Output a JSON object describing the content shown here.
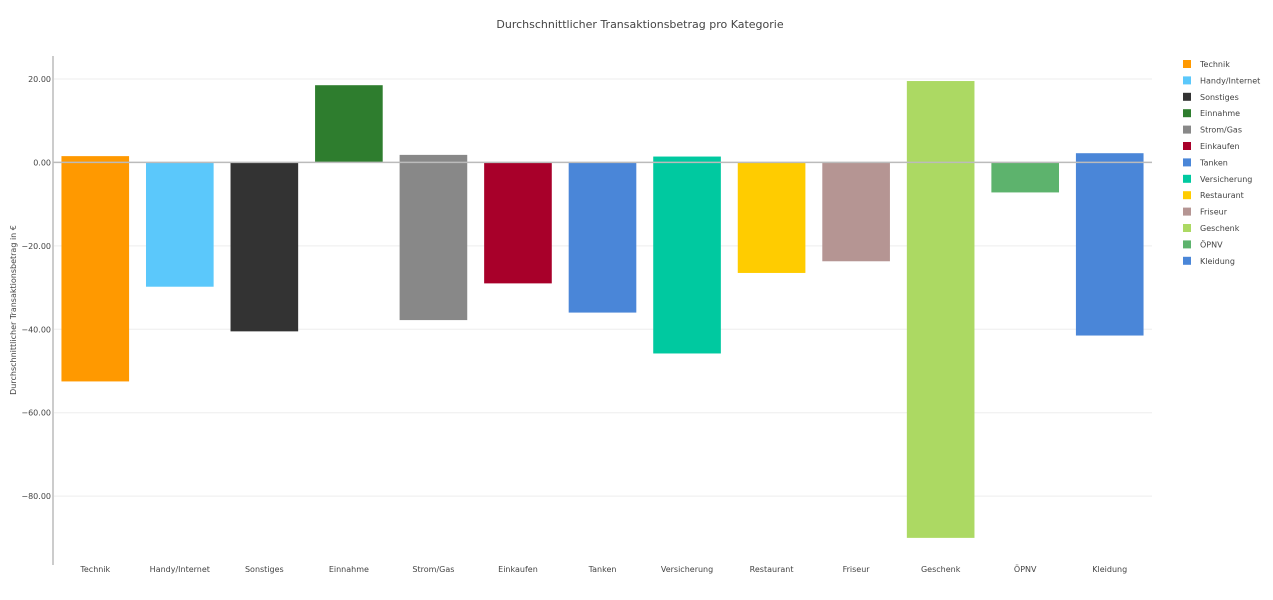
{
  "chart_data": {
    "type": "bar",
    "title": "Durchschnittlicher Transaktionsbetrag pro Kategorie",
    "xlabel": "",
    "ylabel": "Durchschnittlicher Transaktionsbetrag in €",
    "ylim": [
      -96.5,
      25.5
    ],
    "yticks": [
      20,
      0,
      -20,
      -40,
      -60,
      -80
    ],
    "ytick_labels": [
      "20.00",
      "0.00",
      "−20.00",
      "−40.00",
      "−60.00",
      "−80.00"
    ],
    "grid": true,
    "legend_position": "right",
    "categories": [
      "Technik",
      "Handy/Internet",
      "Sonstiges",
      "Einnahme",
      "Strom/Gas",
      "Einkaufen",
      "Tanken",
      "Versicherung",
      "Restaurant",
      "Friseur",
      "Geschenk",
      "ÖPNV",
      "Kleidung"
    ],
    "top_values": [
      1.5,
      0,
      0,
      18.5,
      1.8,
      0,
      0,
      1.4,
      0,
      0,
      19.5,
      0,
      2.2
    ],
    "bottom_values": [
      -52.5,
      -29.8,
      -40.5,
      0,
      -37.8,
      -29.0,
      -36.0,
      -45.8,
      -26.5,
      -23.7,
      -90.0,
      -7.2,
      -41.5
    ],
    "colors": [
      "#ff9900",
      "#5bc8fb",
      "#333333",
      "#2e7d2e",
      "#888888",
      "#a8002a",
      "#4a86d8",
      "#00c9a0",
      "#ffcc00",
      "#b59593",
      "#acd963",
      "#5db36d",
      "#4a86d8"
    ],
    "legend": [
      "Technik",
      "Handy/Internet",
      "Sonstiges",
      "Einnahme",
      "Strom/Gas",
      "Einkaufen",
      "Tanken",
      "Versicherung",
      "Restaurant",
      "Friseur",
      "Geschenk",
      "ÖPNV",
      "Kleidung"
    ]
  }
}
